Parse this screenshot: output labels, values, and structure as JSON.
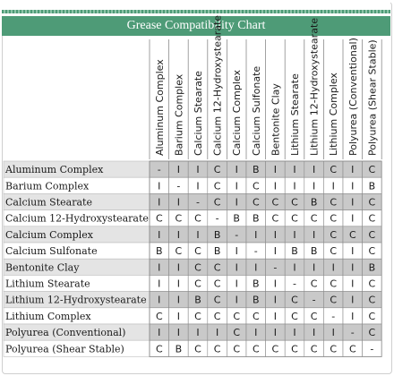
{
  "chart_data": {
    "type": "table",
    "title": "Grease Compatibility Chart",
    "columns": [
      "Aluminum Complex",
      "Barium Complex",
      "Calcium Stearate",
      "Calcium 12-Hydroxystearate",
      "Calcium Complex",
      "Calcium Sulfonate",
      "Bentonite Clay",
      "Lithium Stearate",
      "Lithium 12-Hydroxystearate",
      "Lithium Complex",
      "Polyurea (Conventional)",
      "Polyurea (Shear Stable)"
    ],
    "rows": [
      {
        "label": "Aluminum Complex",
        "values": [
          "-",
          "I",
          "I",
          "C",
          "I",
          "B",
          "I",
          "I",
          "I",
          "C",
          "I",
          "C"
        ]
      },
      {
        "label": "Barium Complex",
        "values": [
          "I",
          "-",
          "I",
          "C",
          "I",
          "C",
          "I",
          "I",
          "I",
          "I",
          "I",
          "B"
        ]
      },
      {
        "label": "Calcium Stearate",
        "values": [
          "I",
          "I",
          "-",
          "C",
          "I",
          "C",
          "C",
          "C",
          "B",
          "C",
          "I",
          "C"
        ]
      },
      {
        "label": "Calcium 12-Hydroxystearate",
        "values": [
          "C",
          "C",
          "C",
          "-",
          "B",
          "B",
          "C",
          "C",
          "C",
          "C",
          "I",
          "C"
        ]
      },
      {
        "label": "Calcium Complex",
        "values": [
          "I",
          "I",
          "I",
          "B",
          "-",
          "I",
          "I",
          "I",
          "I",
          "C",
          "C",
          "C"
        ]
      },
      {
        "label": "Calcium Sulfonate",
        "values": [
          "B",
          "C",
          "C",
          "B",
          "I",
          "-",
          "I",
          "B",
          "B",
          "C",
          "I",
          "C"
        ]
      },
      {
        "label": "Bentonite Clay",
        "values": [
          "I",
          "I",
          "C",
          "C",
          "I",
          "I",
          "-",
          "I",
          "I",
          "I",
          "I",
          "B"
        ]
      },
      {
        "label": "Lithium Stearate",
        "values": [
          "I",
          "I",
          "C",
          "C",
          "I",
          "B",
          "I",
          "-",
          "C",
          "C",
          "I",
          "C"
        ]
      },
      {
        "label": "Lithium 12-Hydroxystearate",
        "values": [
          "I",
          "I",
          "B",
          "C",
          "I",
          "B",
          "I",
          "C",
          "-",
          "C",
          "I",
          "C"
        ]
      },
      {
        "label": "Lithium Complex",
        "values": [
          "C",
          "I",
          "C",
          "C",
          "C",
          "C",
          "I",
          "C",
          "C",
          "-",
          "I",
          "C"
        ]
      },
      {
        "label": "Polyurea (Conventional)",
        "values": [
          "I",
          "I",
          "I",
          "I",
          "C",
          "I",
          "I",
          "I",
          "I",
          "I",
          "-",
          "C"
        ]
      },
      {
        "label": "Polyurea (Shear Stable)",
        "values": [
          "C",
          "B",
          "C",
          "C",
          "C",
          "C",
          "C",
          "C",
          "C",
          "C",
          "C",
          "-"
        ]
      }
    ]
  },
  "colors": {
    "header_green": "#4e9b77",
    "row_shade": "#e4e4e4",
    "cell_shade": "#c9c9c9",
    "grid_line": "#8a8a8a",
    "label_border": "#bdbdbd"
  }
}
